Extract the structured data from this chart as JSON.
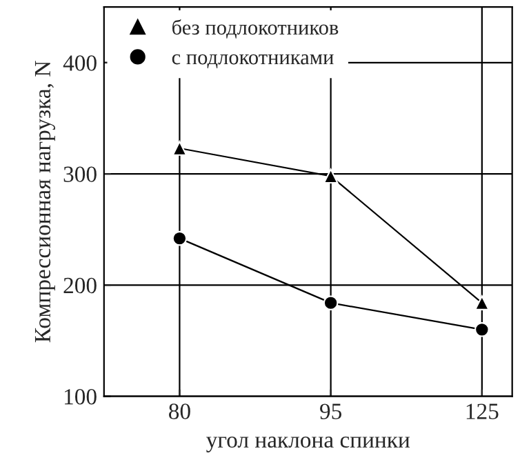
{
  "chart_data": {
    "type": "line",
    "xlabel": "угол наклона спинки",
    "ylabel": "Компрессионная нагрузка, N",
    "categories": [
      "80",
      "95",
      "125"
    ],
    "series": [
      {
        "name": "без подлокотников",
        "color": "#000000",
        "marker": "triangle",
        "values": [
          323,
          298,
          184
        ]
      },
      {
        "name": "с подлокотниками",
        "color": "#000000",
        "marker": "circle",
        "values": [
          242,
          184,
          160
        ]
      }
    ],
    "ylim": [
      100,
      450
    ],
    "yticks": [
      100,
      200,
      300,
      400
    ],
    "grid": true,
    "legend": "top left",
    "line_style": "solid"
  }
}
